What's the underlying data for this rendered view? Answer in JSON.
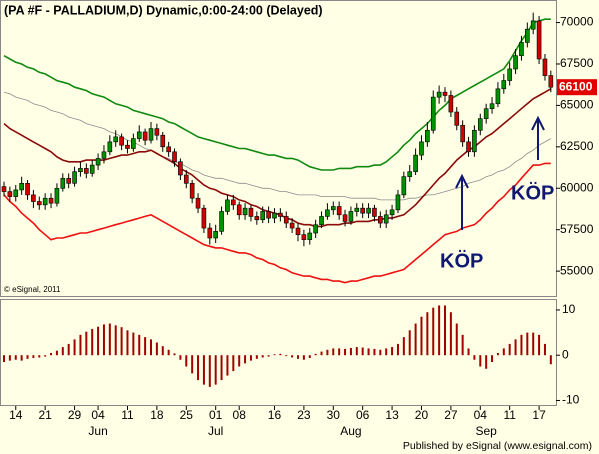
{
  "chart_data": [
    {
      "type": "candlestick",
      "title": "(PA #F - PALLADIUM,D) Dynamic,0:00-24:00 (Delayed)",
      "copyright": "© eSignal, 2011",
      "footer": "Published by eSignal (www.esignal.com)",
      "categories": [
        null,
        null,
        "14",
        null,
        null,
        null,
        null,
        "21",
        null,
        null,
        null,
        null,
        "29",
        null,
        null,
        null,
        "04",
        null,
        null,
        null,
        null,
        "11",
        null,
        null,
        null,
        null,
        "18",
        null,
        null,
        null,
        null,
        "25",
        null,
        null,
        null,
        null,
        "01",
        null,
        null,
        null,
        "08",
        null,
        null,
        null,
        null,
        null,
        "16",
        null,
        null,
        null,
        null,
        "23",
        null,
        null,
        null,
        null,
        "30",
        null,
        null,
        null,
        null,
        "06",
        null,
        null,
        null,
        null,
        "13",
        null,
        null,
        null,
        null,
        "20",
        null,
        null,
        null,
        null,
        "27",
        null,
        null,
        null,
        null,
        "04",
        null,
        null,
        null,
        null,
        "11",
        null,
        null,
        null,
        null,
        "17",
        null,
        null
      ],
      "months": [
        null,
        null,
        null,
        null,
        null,
        null,
        null,
        null,
        null,
        null,
        null,
        null,
        null,
        null,
        null,
        null,
        "Jun",
        null,
        null,
        null,
        null,
        null,
        null,
        null,
        null,
        null,
        null,
        null,
        null,
        null,
        null,
        null,
        null,
        null,
        null,
        null,
        "Jul",
        null,
        null,
        null,
        null,
        null,
        null,
        null,
        null,
        null,
        null,
        null,
        null,
        null,
        null,
        null,
        null,
        null,
        null,
        null,
        null,
        null,
        null,
        "Aug",
        null,
        null,
        null,
        null,
        null,
        null,
        null,
        null,
        null,
        null,
        null,
        null,
        null,
        null,
        null,
        null,
        null,
        null,
        null,
        null,
        null,
        null,
        "Sep",
        null,
        null,
        null,
        null,
        null,
        null,
        null,
        null,
        null,
        null,
        null
      ],
      "open": [
        60100,
        59800,
        59500,
        59900,
        60300,
        59600,
        59200,
        59000,
        59400,
        59100,
        60000,
        60600,
        60300,
        61000,
        61200,
        60900,
        61400,
        61800,
        62200,
        62800,
        63100,
        62600,
        62400,
        63000,
        63400,
        62900,
        63600,
        63200,
        62500,
        62200,
        61600,
        60800,
        60300,
        59400,
        58800,
        57600,
        57000,
        57400,
        58600,
        59300,
        59000,
        58400,
        58800,
        58300,
        58100,
        58600,
        58200,
        58500,
        58300,
        57900,
        57600,
        57200,
        56900,
        57300,
        57800,
        58300,
        58700,
        58900,
        58400,
        58000,
        58600,
        58800,
        58500,
        58800,
        58300,
        57900,
        58400,
        58700,
        59600,
        60700,
        61000,
        62000,
        62800,
        63500,
        65500,
        65800,
        65600,
        64600,
        63800,
        62800,
        62200,
        63500,
        64200,
        64800,
        65100,
        66000,
        66500,
        67200,
        68000,
        68800,
        69600,
        70100,
        67800,
        66800
      ],
      "high": [
        60400,
        60100,
        60200,
        60700,
        60500,
        59900,
        59500,
        59700,
        59700,
        60300,
        60900,
        60900,
        61300,
        61600,
        61500,
        61700,
        62100,
        62600,
        63200,
        63500,
        63300,
        62900,
        63300,
        63800,
        63600,
        64000,
        63900,
        63400,
        62800,
        62400,
        61800,
        61100,
        60500,
        59700,
        59000,
        57900,
        57800,
        58900,
        59600,
        59600,
        59200,
        59100,
        59000,
        58600,
        58900,
        58900,
        58800,
        58800,
        58600,
        58200,
        57900,
        57500,
        57600,
        58100,
        58600,
        59100,
        59200,
        59200,
        58700,
        58900,
        59100,
        59100,
        59100,
        59000,
        58600,
        58700,
        59000,
        59900,
        61000,
        61400,
        62400,
        63200,
        64000,
        65900,
        66200,
        66100,
        65900,
        64900,
        64100,
        63100,
        63800,
        64500,
        65100,
        65500,
        66400,
        66900,
        67600,
        68400,
        69200,
        70000,
        70600,
        70400,
        68100,
        67100
      ],
      "low": [
        59500,
        59200,
        59200,
        59600,
        59300,
        58800,
        58700,
        58700,
        58800,
        58900,
        59800,
        60000,
        60100,
        60700,
        60600,
        60700,
        61100,
        61500,
        62000,
        62500,
        62300,
        62100,
        62200,
        62800,
        62600,
        62700,
        62900,
        62200,
        61900,
        61300,
        60500,
        60000,
        59100,
        58500,
        57300,
        56600,
        56700,
        57200,
        58400,
        58700,
        58100,
        58100,
        58000,
        57800,
        57900,
        57900,
        57900,
        58000,
        57600,
        57300,
        56800,
        56500,
        56600,
        57000,
        57600,
        58100,
        58400,
        58100,
        57700,
        57800,
        58300,
        58200,
        58200,
        58000,
        57600,
        57600,
        58100,
        58500,
        59400,
        60400,
        60800,
        61700,
        62500,
        63300,
        65100,
        65200,
        64300,
        63500,
        62500,
        61900,
        61900,
        63200,
        63900,
        64500,
        64900,
        65700,
        66200,
        66900,
        67700,
        68500,
        69300,
        67500,
        66500,
        65800
      ],
      "close": [
        59800,
        59500,
        59900,
        60300,
        59600,
        59200,
        59000,
        59400,
        59100,
        60000,
        60600,
        60300,
        61000,
        61200,
        60900,
        61400,
        61800,
        62200,
        62800,
        63100,
        62600,
        62400,
        63000,
        63400,
        62900,
        63600,
        63200,
        62500,
        62200,
        61600,
        60800,
        60300,
        59400,
        58800,
        57600,
        57000,
        57400,
        58600,
        59300,
        59000,
        58400,
        58800,
        58300,
        58100,
        58600,
        58200,
        58500,
        58300,
        57900,
        57600,
        57200,
        56900,
        57300,
        57800,
        58300,
        58700,
        58900,
        58400,
        58000,
        58600,
        58800,
        58500,
        58800,
        58300,
        57900,
        58400,
        58700,
        59600,
        60700,
        61000,
        62000,
        62800,
        63500,
        65500,
        65800,
        65600,
        64600,
        63800,
        62800,
        62200,
        63500,
        64200,
        64800,
        65100,
        66000,
        66500,
        67200,
        68000,
        68800,
        69600,
        70100,
        67800,
        66800,
        66100
      ],
      "color_up": "#009000",
      "color_down": "#d00000",
      "lines": [
        {
          "color": "#108a10",
          "values": [
            68000,
            67800,
            67600,
            67500,
            67300,
            67200,
            67000,
            66900,
            66700,
            66500,
            66400,
            66300,
            66100,
            66000,
            65900,
            65700,
            65600,
            65500,
            65300,
            65100,
            65000,
            64900,
            64700,
            64600,
            64500,
            64400,
            64300,
            64200,
            64000,
            63900,
            63700,
            63500,
            63300,
            63100,
            63000,
            62900,
            62800,
            62700,
            62600,
            62500,
            62400,
            62400,
            62300,
            62200,
            62100,
            62000,
            62000,
            61900,
            61800,
            61800,
            61700,
            61500,
            61300,
            61200,
            61100,
            61100,
            61100,
            61200,
            61200,
            61200,
            61300,
            61300,
            61300,
            61400,
            61400,
            61600,
            61900,
            62200,
            62600,
            62900,
            63300,
            63600,
            63900,
            64300,
            64700,
            65000,
            65400,
            65600,
            65800,
            66000,
            66200,
            66400,
            66600,
            66800,
            67000,
            67200,
            67700,
            68300,
            68900,
            69400,
            70000,
            70100,
            70200,
            70200
          ]
        },
        {
          "color": "#8c8c8c",
          "values": [
            65800,
            65700,
            65500,
            65400,
            65300,
            65100,
            65000,
            64900,
            64700,
            64600,
            64500,
            64300,
            64200,
            64100,
            63900,
            63800,
            63700,
            63600,
            63400,
            63300,
            63100,
            62900,
            62800,
            62600,
            62400,
            62300,
            62100,
            61900,
            61800,
            61600,
            61500,
            61300,
            61100,
            61000,
            60800,
            60700,
            60600,
            60600,
            60500,
            60400,
            60300,
            60300,
            60200,
            60100,
            60000,
            60000,
            59900,
            59800,
            59800,
            59700,
            59600,
            59600,
            59600,
            59600,
            59500,
            59500,
            59500,
            59500,
            59500,
            59400,
            59400,
            59400,
            59400,
            59400,
            59300,
            59300,
            59300,
            59300,
            59300,
            59400,
            59400,
            59500,
            59600,
            59600,
            59700,
            59800,
            59900,
            60000,
            60100,
            60300,
            60400,
            60500,
            60700,
            60800,
            61000,
            61100,
            61300,
            61600,
            61800,
            62100,
            62300,
            62600,
            62800,
            63000
          ]
        },
        {
          "color": "#8b0a0a",
          "values": [
            63900,
            63600,
            63400,
            63200,
            63000,
            62800,
            62600,
            62400,
            62200,
            61900,
            61700,
            61600,
            61600,
            61600,
            61700,
            61700,
            61700,
            61700,
            61800,
            61900,
            62000,
            62000,
            62100,
            62200,
            62200,
            62300,
            62100,
            61900,
            61700,
            61500,
            61200,
            61000,
            60800,
            60500,
            60200,
            60000,
            59900,
            59700,
            59600,
            59500,
            59300,
            59200,
            59000,
            58900,
            58700,
            58600,
            58500,
            58400,
            58200,
            58100,
            57900,
            57800,
            57800,
            57700,
            57700,
            57800,
            57800,
            57800,
            57900,
            57900,
            58000,
            58000,
            58000,
            58100,
            58100,
            58200,
            58200,
            58300,
            58400,
            58700,
            59000,
            59400,
            59800,
            60200,
            60600,
            60900,
            61300,
            61700,
            62000,
            62300,
            62500,
            62800,
            63100,
            63300,
            63600,
            63900,
            64200,
            64500,
            64800,
            65100,
            65400,
            65600,
            65800,
            66000
          ]
        },
        {
          "color": "#ee1111",
          "values": [
            59600,
            59200,
            58900,
            58500,
            58200,
            57900,
            57500,
            57200,
            56900,
            57000,
            57000,
            57100,
            57200,
            57300,
            57300,
            57400,
            57500,
            57600,
            57700,
            57800,
            57900,
            58000,
            58100,
            58200,
            58300,
            58400,
            58200,
            58000,
            57800,
            57600,
            57400,
            57200,
            57000,
            56800,
            56600,
            56500,
            56400,
            56400,
            56300,
            56200,
            56100,
            56100,
            56000,
            55800,
            55700,
            55500,
            55400,
            55200,
            55100,
            54900,
            54800,
            54700,
            54700,
            54600,
            54500,
            54500,
            54400,
            54400,
            54300,
            54400,
            54400,
            54500,
            54600,
            54700,
            54700,
            54800,
            54900,
            55000,
            55100,
            55400,
            55700,
            56000,
            56300,
            56600,
            56900,
            57200,
            57300,
            57400,
            57600,
            57700,
            57800,
            58100,
            58500,
            58800,
            59200,
            59500,
            59900,
            60200,
            60600,
            61000,
            61400,
            61400,
            61500,
            61500
          ]
        }
      ],
      "last_price": 66100,
      "last_price_color": "#e00000",
      "annotations": [
        "KÖP",
        "KÖP"
      ],
      "annotation_color": "#101870",
      "ylim": [
        53500,
        71300
      ],
      "yticks": [
        55000,
        57500,
        60000,
        62500,
        65000,
        67500,
        70000
      ]
    },
    {
      "type": "bar",
      "color": "#a00000",
      "values": [
        -1.5,
        -1.2,
        -1,
        -1.2,
        -0.8,
        -0.6,
        -0.5,
        -0.3,
        0.5,
        1,
        1.8,
        2.5,
        3.5,
        4.5,
        5.2,
        5.8,
        6.3,
        6.8,
        7,
        6.6,
        6.2,
        5.5,
        5,
        4.5,
        4,
        3.5,
        2.8,
        2,
        1.2,
        0.4,
        -1,
        -2.5,
        -4,
        -5.5,
        -6.5,
        -7,
        -6.5,
        -5.5,
        -4.5,
        -3.5,
        -2.5,
        -1.8,
        -1.2,
        -0.8,
        -0.5,
        -0.3,
        0.2,
        0.3,
        -0.2,
        -0.5,
        -0.8,
        -1,
        -0.6,
        0.3,
        0.8,
        1.2,
        1.5,
        1.5,
        1.4,
        1.6,
        1.8,
        1.7,
        1.5,
        1.4,
        1.2,
        1.5,
        1.8,
        2.5,
        4,
        5.5,
        7,
        8.5,
        9.5,
        10.5,
        11,
        11,
        9.5,
        7,
        4.5,
        1.5,
        -1,
        -2.5,
        -3,
        -1.5,
        0.5,
        1.5,
        2.5,
        3.5,
        4.5,
        5,
        5,
        4.5,
        2.5,
        -2
      ],
      "ylim": [
        -11,
        12.2
      ],
      "yticks": [
        10,
        0,
        -10
      ]
    }
  ]
}
